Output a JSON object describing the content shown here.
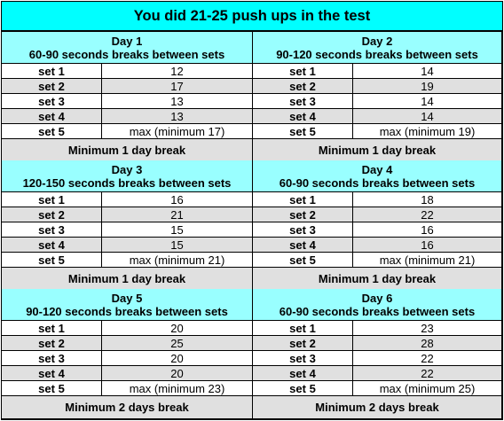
{
  "title": "You did 21-25 push ups in the test",
  "days": [
    {
      "day": "Day 1",
      "rest": "60-90 seconds breaks between sets",
      "sets": [
        {
          "label": "set 1",
          "value": "12"
        },
        {
          "label": "set 2",
          "value": "17"
        },
        {
          "label": "set 3",
          "value": "13"
        },
        {
          "label": "set 4",
          "value": "13"
        },
        {
          "label": "set 5",
          "value": "max (minimum 17)"
        }
      ]
    },
    {
      "day": "Day 2",
      "rest": "90-120 seconds breaks between sets",
      "sets": [
        {
          "label": "set 1",
          "value": "14"
        },
        {
          "label": "set 2",
          "value": "19"
        },
        {
          "label": "set 3",
          "value": "14"
        },
        {
          "label": "set 4",
          "value": "14"
        },
        {
          "label": "set 5",
          "value": "max (minimum 19)"
        }
      ]
    },
    {
      "day": "Day 3",
      "rest": "120-150 seconds breaks between sets",
      "sets": [
        {
          "label": "set 1",
          "value": "16"
        },
        {
          "label": "set 2",
          "value": "21"
        },
        {
          "label": "set 3",
          "value": "15"
        },
        {
          "label": "set 4",
          "value": "15"
        },
        {
          "label": "set 5",
          "value": "max (minimum 21)"
        }
      ]
    },
    {
      "day": "Day 4",
      "rest": "60-90 seconds breaks between sets",
      "sets": [
        {
          "label": "set 1",
          "value": "18"
        },
        {
          "label": "set 2",
          "value": "22"
        },
        {
          "label": "set 3",
          "value": "16"
        },
        {
          "label": "set 4",
          "value": "16"
        },
        {
          "label": "set 5",
          "value": "max (minimum 21)"
        }
      ]
    },
    {
      "day": "Day 5",
      "rest": "90-120 seconds breaks between sets",
      "sets": [
        {
          "label": "set 1",
          "value": "20"
        },
        {
          "label": "set 2",
          "value": "25"
        },
        {
          "label": "set 3",
          "value": "20"
        },
        {
          "label": "set 4",
          "value": "20"
        },
        {
          "label": "set 5",
          "value": "max (minimum 23)"
        }
      ]
    },
    {
      "day": "Day 6",
      "rest": "60-90 seconds breaks between sets",
      "sets": [
        {
          "label": "set 1",
          "value": "23"
        },
        {
          "label": "set 2",
          "value": "28"
        },
        {
          "label": "set 3",
          "value": "22"
        },
        {
          "label": "set 4",
          "value": "22"
        },
        {
          "label": "set 5",
          "value": "max (minimum 25)"
        }
      ]
    }
  ],
  "breaks": [
    "Minimum 1 day break",
    "Minimum 1 day break",
    "Minimum 1 day break",
    "Minimum 1 day break",
    "Minimum 2 days break",
    "Minimum 2 days break"
  ]
}
